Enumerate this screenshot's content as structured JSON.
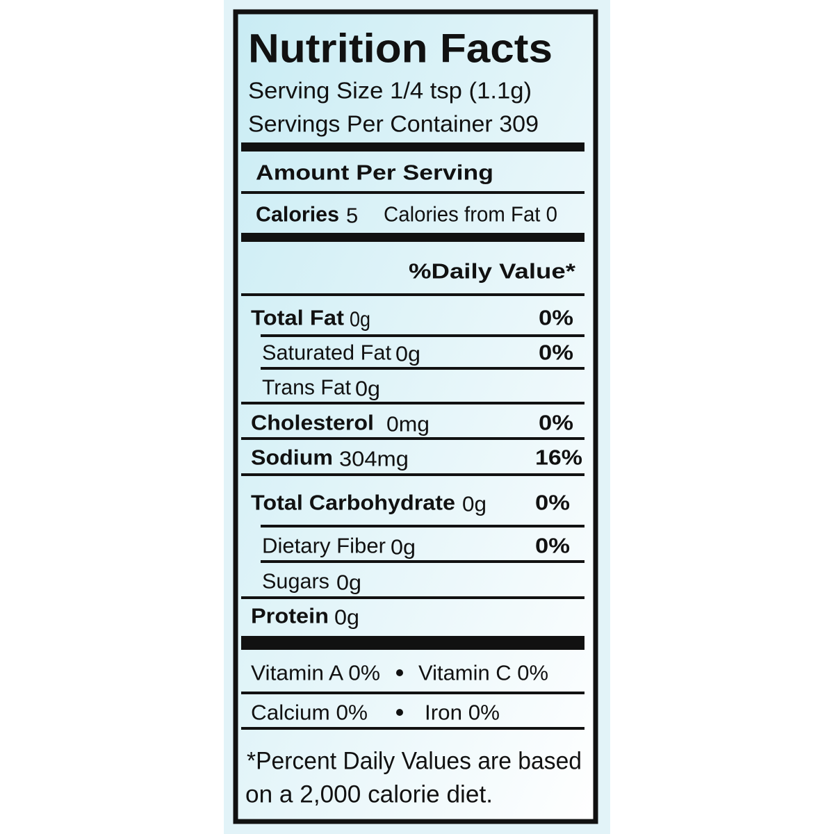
{
  "header": {
    "title": "Nutrition Facts",
    "serving_size": "Serving Size 1/4 tsp (1.1g)",
    "servings_per_container": "Servings Per Container 309"
  },
  "amount_per_serving": "Amount Per Serving",
  "calories": {
    "label": "Calories",
    "value": "5",
    "from_fat": "Calories from Fat 0"
  },
  "daily_value_header": "%Daily Value*",
  "nutrients": [
    {
      "name": "Total Fat",
      "amount": "0g",
      "dv": "0%"
    },
    {
      "name": "Saturated Fat",
      "amount": "0g",
      "dv": "0%"
    },
    {
      "name": "Trans Fat",
      "amount": "0g"
    },
    {
      "name": "Cholesterol",
      "amount": "0mg",
      "dv": "0%"
    },
    {
      "name": "Sodium",
      "amount": "304mg",
      "dv": "16%"
    },
    {
      "name": "Total Carbohydrate",
      "amount": "0g",
      "dv": "0%"
    },
    {
      "name": "Dietary Fiber",
      "amount": "0g",
      "dv": "0%"
    },
    {
      "name": "Sugars",
      "amount": "0g"
    },
    {
      "name": "Protein",
      "amount": "0g"
    }
  ],
  "vitamins": [
    [
      "Vitamin A 0%",
      "Vitamin C 0%"
    ],
    [
      "Calcium 0%",
      "Iron 0%"
    ]
  ],
  "footnote": [
    "*Percent Daily Values are based",
    "on a 2,000 calorie diet."
  ]
}
